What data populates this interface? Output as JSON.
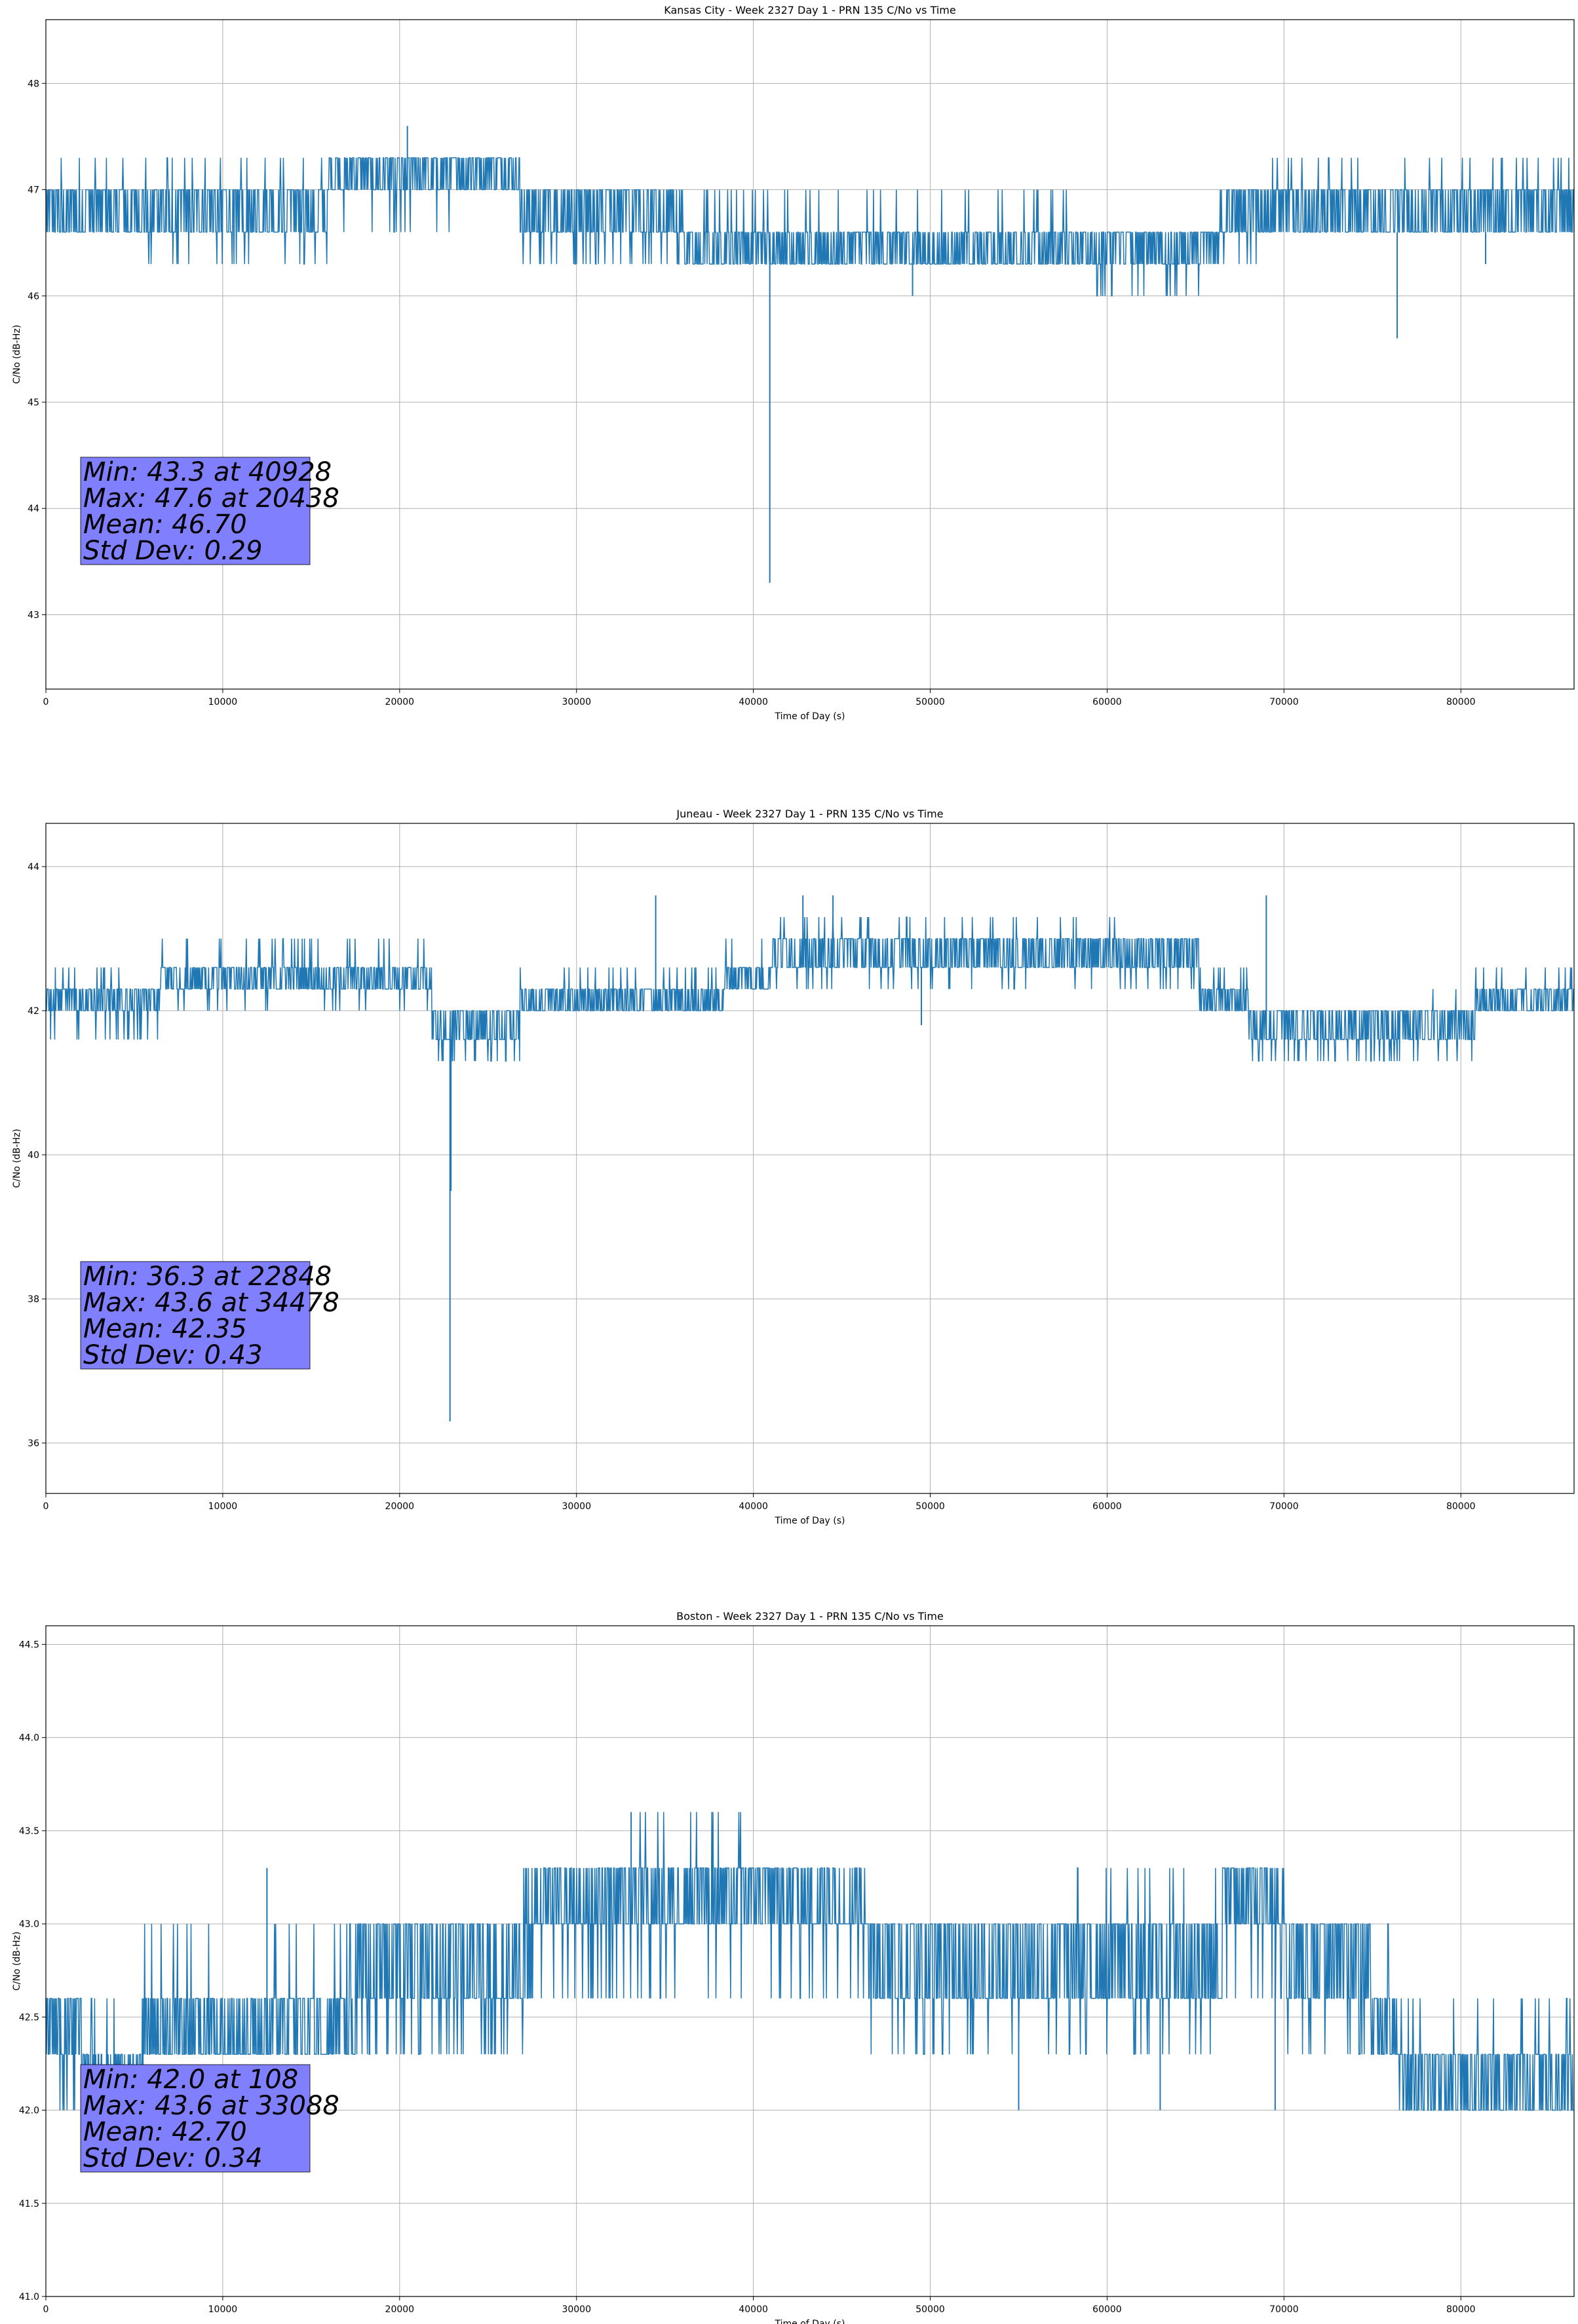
{
  "figure": {
    "background": "#ffffff",
    "line_color": "#1f77b4",
    "stats_box_color": "#8080ff",
    "grid_color": "#b0b0b0"
  },
  "chart_data": [
    {
      "type": "line",
      "title": "Kansas City - Week 2327 Day 1 - PRN 135 C/No vs Time",
      "xlabel": "Time of Day (s)",
      "ylabel": "C/No (dB-Hz)",
      "xlim": [
        0,
        86400
      ],
      "ylim": [
        42.3,
        48.6
      ],
      "xticks": [
        0,
        10000,
        20000,
        30000,
        40000,
        50000,
        60000,
        70000,
        80000
      ],
      "xtick_labels": [
        "0",
        "10000",
        "20000",
        "30000",
        "40000",
        "50000",
        "60000",
        "70000",
        "80000"
      ],
      "yticks": [
        43,
        44,
        45,
        46,
        47,
        48
      ],
      "ytick_labels": [
        "43",
        "44",
        "45",
        "46",
        "47",
        "48"
      ],
      "grid": true,
      "stats": [
        "Min: 43.3 at 40928",
        "Max: 47.6 at 20438",
        "Mean: 46.70",
        "Std Dev: 0.29"
      ],
      "min": {
        "value": 43.3,
        "time": 40928
      },
      "max": {
        "value": 47.6,
        "time": 20438
      },
      "mean": 46.7,
      "std": 0.29,
      "quantum": 0.3,
      "segments": [
        {
          "x0": 0,
          "x1": 5800,
          "levels": [
            46.6,
            47.0
          ],
          "spike": 47.3
        },
        {
          "x0": 5800,
          "x1": 9800,
          "levels": [
            46.6,
            47.0
          ],
          "spike": 47.3,
          "dip": 46.3
        },
        {
          "x0": 9800,
          "x1": 16000,
          "levels": [
            46.6,
            47.0
          ],
          "spike": 47.3,
          "dip": 46.3
        },
        {
          "x0": 16000,
          "x1": 26800,
          "levels": [
            47.0,
            47.3
          ],
          "dip": 46.6,
          "spike": 47.3
        },
        {
          "x0": 26800,
          "x1": 36000,
          "levels": [
            46.6,
            47.0
          ],
          "dip": 46.3
        },
        {
          "x0": 36000,
          "x1": 59300,
          "levels": [
            46.3,
            46.6
          ],
          "spike": 47.0
        },
        {
          "x0": 59300,
          "x1": 66300,
          "levels": [
            46.3,
            46.6
          ],
          "dip": 46.0
        },
        {
          "x0": 66300,
          "x1": 68800,
          "levels": [
            46.6,
            47.0
          ],
          "dip": 46.3
        },
        {
          "x0": 68800,
          "x1": 86400,
          "levels": [
            46.6,
            47.0
          ],
          "spike": 47.3
        }
      ],
      "spikes": [
        {
          "x": 40928,
          "y": 43.3
        },
        {
          "x": 20438,
          "y": 47.6
        },
        {
          "x": 76400,
          "y": 45.6
        },
        {
          "x": 49000,
          "y": 46.0
        },
        {
          "x": 81400,
          "y": 46.3
        }
      ]
    },
    {
      "type": "line",
      "title": "Juneau - Week 2327 Day 1 - PRN 135 C/No vs Time",
      "xlabel": "Time of Day (s)",
      "ylabel": "C/No (dB-Hz)",
      "xlim": [
        0,
        86400
      ],
      "ylim": [
        35.3,
        44.6
      ],
      "xticks": [
        0,
        10000,
        20000,
        30000,
        40000,
        50000,
        60000,
        70000,
        80000
      ],
      "xtick_labels": [
        "0",
        "10000",
        "20000",
        "30000",
        "40000",
        "50000",
        "60000",
        "70000",
        "80000"
      ],
      "yticks": [
        36,
        38,
        40,
        42,
        44
      ],
      "ytick_labels": [
        "36",
        "38",
        "40",
        "42",
        "44"
      ],
      "grid": true,
      "stats": [
        "Min: 36.3 at 22848",
        "Max: 43.6 at 34478",
        "Mean: 42.35",
        "Std Dev: 0.43"
      ],
      "min": {
        "value": 36.3,
        "time": 22848
      },
      "max": {
        "value": 43.6,
        "time": 34478
      },
      "mean": 42.35,
      "std": 0.43,
      "quantum": 0.3,
      "segments": [
        {
          "x0": 0,
          "x1": 6500,
          "levels": [
            42.0,
            42.3
          ],
          "spike": 42.6,
          "dip": 41.6
        },
        {
          "x0": 6500,
          "x1": 21800,
          "levels": [
            42.3,
            42.6
          ],
          "spike": 43.0,
          "dip": 42.0
        },
        {
          "x0": 21800,
          "x1": 26800,
          "levels": [
            41.6,
            42.0
          ],
          "dip": 41.3
        },
        {
          "x0": 26800,
          "x1": 38300,
          "levels": [
            42.0,
            42.3
          ],
          "spike": 42.6
        },
        {
          "x0": 38300,
          "x1": 41000,
          "levels": [
            42.3,
            42.6
          ],
          "spike": 43.0
        },
        {
          "x0": 41000,
          "x1": 60700,
          "levels": [
            42.6,
            43.0
          ],
          "spike": 43.3,
          "dip": 42.3
        },
        {
          "x0": 60700,
          "x1": 65200,
          "levels": [
            42.6,
            43.0
          ],
          "dip": 42.3
        },
        {
          "x0": 65200,
          "x1": 68000,
          "levels": [
            42.0,
            42.3
          ],
          "spike": 42.6
        },
        {
          "x0": 68000,
          "x1": 76500,
          "levels": [
            41.6,
            42.0
          ],
          "dip": 41.3
        },
        {
          "x0": 76500,
          "x1": 80800,
          "levels": [
            41.6,
            42.0
          ],
          "dip": 41.3,
          "spike": 42.3
        },
        {
          "x0": 80800,
          "x1": 86400,
          "levels": [
            42.0,
            42.3
          ],
          "spike": 42.6
        }
      ],
      "spikes": [
        {
          "x": 22848,
          "y": 36.3
        },
        {
          "x": 22900,
          "y": 39.5
        },
        {
          "x": 34478,
          "y": 43.6
        },
        {
          "x": 42800,
          "y": 43.6
        },
        {
          "x": 44500,
          "y": 43.6
        },
        {
          "x": 69000,
          "y": 43.6
        },
        {
          "x": 49500,
          "y": 41.8
        }
      ]
    },
    {
      "type": "line",
      "title": "Boston - Week 2327 Day 1 - PRN 135 C/No vs Time",
      "xlabel": "Time of Day (s)",
      "ylabel": "C/No (dB-Hz)",
      "xlim": [
        0,
        86400
      ],
      "ylim": [
        41.0,
        44.6
      ],
      "xticks": [
        0,
        10000,
        20000,
        30000,
        40000,
        50000,
        60000,
        70000,
        80000
      ],
      "xtick_labels": [
        "0",
        "10000",
        "20000",
        "30000",
        "40000",
        "50000",
        "60000",
        "70000",
        "80000"
      ],
      "yticks": [
        41.0,
        41.5,
        42.0,
        42.5,
        43.0,
        43.5,
        44.0,
        44.5
      ],
      "ytick_labels": [
        "41.0",
        "41.5",
        "42.0",
        "42.5",
        "43.0",
        "43.5",
        "44.0",
        "44.5"
      ],
      "grid": true,
      "stats": [
        "Min: 42.0 at 108",
        "Max: 43.6 at 33088",
        "Mean: 42.70",
        "Std Dev: 0.34"
      ],
      "min": {
        "value": 42.0,
        "time": 108
      },
      "max": {
        "value": 43.6,
        "time": 33088
      },
      "mean": 42.7,
      "std": 0.34,
      "quantum": 0.3,
      "segments": [
        {
          "x0": 0,
          "x1": 2000,
          "levels": [
            42.3,
            42.6
          ],
          "dip": 42.0
        },
        {
          "x0": 2000,
          "x1": 5500,
          "levels": [
            42.0,
            42.3
          ],
          "spike": 42.6
        },
        {
          "x0": 5500,
          "x1": 17500,
          "levels": [
            42.3,
            42.6
          ],
          "spike": 43.0
        },
        {
          "x0": 17500,
          "x1": 27000,
          "levels": [
            42.6,
            43.0
          ],
          "dip": 42.3
        },
        {
          "x0": 27000,
          "x1": 33000,
          "levels": [
            43.0,
            43.3
          ],
          "dip": 42.6
        },
        {
          "x0": 33000,
          "x1": 39500,
          "levels": [
            43.0,
            43.3
          ],
          "spike": 43.6,
          "dip": 42.6
        },
        {
          "x0": 39500,
          "x1": 46500,
          "levels": [
            43.0,
            43.3
          ],
          "dip": 42.6
        },
        {
          "x0": 46500,
          "x1": 57500,
          "levels": [
            42.6,
            43.0
          ],
          "dip": 42.3
        },
        {
          "x0": 57500,
          "x1": 66500,
          "levels": [
            42.6,
            43.0
          ],
          "spike": 43.3,
          "dip": 42.3
        },
        {
          "x0": 66500,
          "x1": 70000,
          "levels": [
            43.0,
            43.3
          ],
          "dip": 42.6
        },
        {
          "x0": 70000,
          "x1": 75000,
          "levels": [
            42.6,
            43.0
          ],
          "dip": 42.3
        },
        {
          "x0": 75000,
          "x1": 76500,
          "levels": [
            42.3,
            42.6
          ],
          "spike": 43.0
        },
        {
          "x0": 76500,
          "x1": 86400,
          "levels": [
            42.0,
            42.3
          ],
          "spike": 42.6
        }
      ],
      "spikes": [
        {
          "x": 33088,
          "y": 43.6
        },
        {
          "x": 12500,
          "y": 43.3
        },
        {
          "x": 55000,
          "y": 42.0
        },
        {
          "x": 63000,
          "y": 42.0
        },
        {
          "x": 69500,
          "y": 42.0
        }
      ]
    }
  ]
}
